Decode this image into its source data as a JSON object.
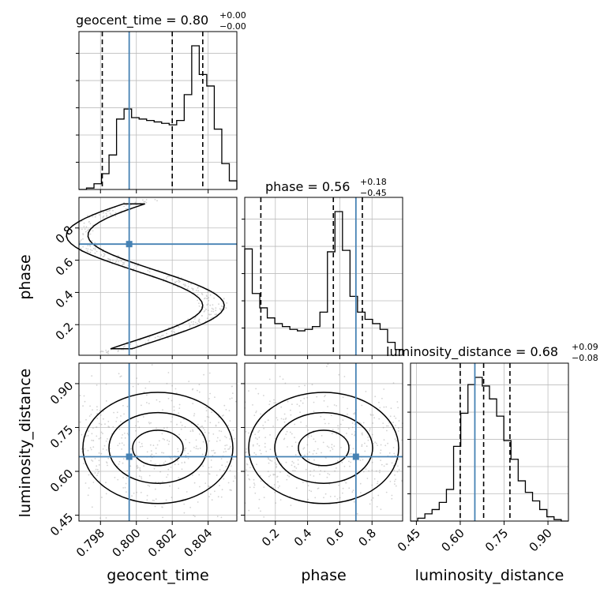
{
  "chart_data": {
    "type": "corner",
    "parameters": [
      "geocent_time",
      "phase",
      "luminosity_distance"
    ],
    "truths": {
      "geocent_time": 0.7996,
      "phase": 0.7,
      "luminosity_distance": 0.65
    },
    "ranges": {
      "geocent_time": [
        0.7968,
        0.8056
      ],
      "phase": [
        0.01,
        0.99
      ],
      "luminosity_distance": [
        0.43,
        0.97
      ]
    },
    "titles": {
      "geocent_time": {
        "prefix": "geocent_time = ",
        "median": "0.80",
        "plus": "+0.00",
        "minus": "−0.00"
      },
      "phase": {
        "prefix": "phase = ",
        "median": "0.56",
        "plus": "+0.18",
        "minus": "−0.45"
      },
      "luminosity_distance": {
        "prefix": "luminosity_distance = ",
        "median": "0.68",
        "plus": "+0.09",
        "minus": "−0.08"
      }
    },
    "axis_labels": {
      "x": [
        "geocent_time",
        "phase",
        "luminosity_distance"
      ],
      "y": [
        "phase",
        "luminosity_distance"
      ]
    },
    "ticks": {
      "geocent_time": {
        "values": [
          0.798,
          0.8,
          0.802,
          0.804
        ],
        "labels": [
          "0.798",
          "0.800",
          "0.802",
          "0.804"
        ]
      },
      "phase": {
        "values": [
          0.2,
          0.4,
          0.6,
          0.8
        ],
        "labels": [
          "0.2",
          "0.4",
          "0.6",
          "0.8"
        ]
      },
      "luminosity_distance": {
        "values": [
          0.45,
          0.6,
          0.75,
          0.9
        ],
        "labels": [
          "0.45",
          "0.60",
          "0.75",
          "0.90"
        ]
      }
    },
    "quantiles": {
      "geocent_time": [
        0.7981,
        0.802,
        0.8037
      ],
      "phase": [
        0.11,
        0.56,
        0.74
      ],
      "luminosity_distance": [
        0.6,
        0.68,
        0.77
      ]
    },
    "histograms": {
      "geocent_time": [
        0.0,
        0.01,
        0.04,
        0.11,
        0.24,
        0.49,
        0.56,
        0.5,
        0.49,
        0.48,
        0.47,
        0.46,
        0.45,
        0.48,
        0.66,
        1.0,
        0.8,
        0.72,
        0.42,
        0.18,
        0.06
      ],
      "phase": [
        0.74,
        0.43,
        0.33,
        0.26,
        0.22,
        0.2,
        0.18,
        0.17,
        0.18,
        0.2,
        0.3,
        0.72,
        1.0,
        0.73,
        0.41,
        0.3,
        0.25,
        0.22,
        0.18,
        0.09,
        0.04
      ],
      "luminosity_distance": [
        0.0,
        0.02,
        0.05,
        0.08,
        0.13,
        0.22,
        0.52,
        0.75,
        0.95,
        1.0,
        0.94,
        0.85,
        0.73,
        0.56,
        0.43,
        0.28,
        0.2,
        0.14,
        0.08,
        0.03,
        0.01,
        0.0
      ]
    },
    "grid": true,
    "colors": {
      "truth": "#4682b4",
      "line": "#000000",
      "points": "#808080"
    }
  }
}
